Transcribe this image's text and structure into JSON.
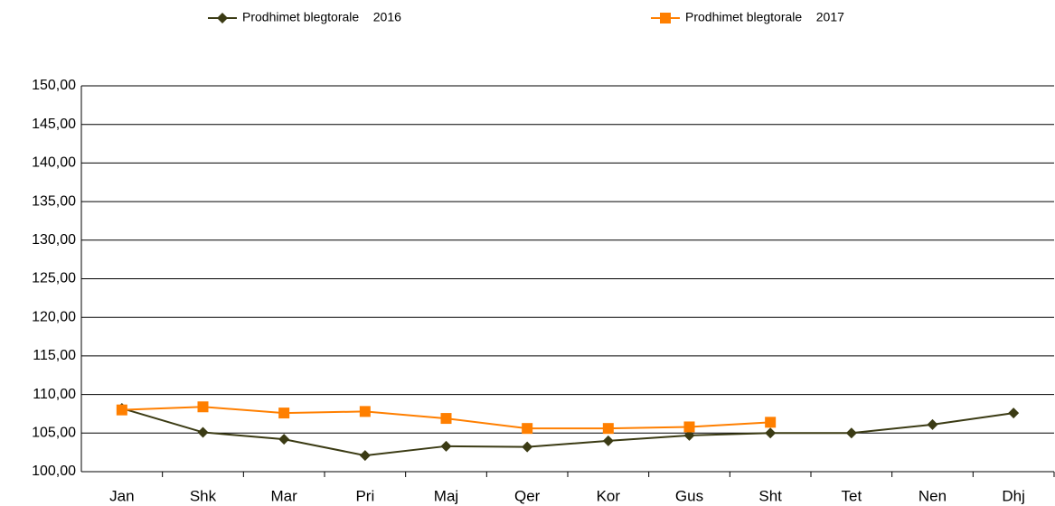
{
  "chart_data": {
    "type": "line",
    "categories": [
      "Jan",
      "Shk",
      "Mar",
      "Pri",
      "Maj",
      "Qer",
      "Kor",
      "Gus",
      "Sht",
      "Tet",
      "Nen",
      "Dhj"
    ],
    "series": [
      {
        "name": "Prodhimet blegtorale    2016",
        "color": "#3b3b14",
        "marker": "diamond",
        "values": [
          108.2,
          105.1,
          104.2,
          102.1,
          103.3,
          103.2,
          104.0,
          104.7,
          105.0,
          105.0,
          106.1,
          107.6
        ]
      },
      {
        "name": "Prodhimet blegtorale    2017",
        "color": "#ff7f00",
        "marker": "square",
        "values": [
          108.0,
          108.4,
          107.6,
          107.8,
          106.9,
          105.6,
          105.6,
          105.8,
          106.4,
          null,
          null,
          null
        ]
      }
    ],
    "ylim": [
      100,
      150
    ],
    "yticks": [
      {
        "value": 100,
        "label": "100,00"
      },
      {
        "value": 105,
        "label": "105,00"
      },
      {
        "value": 110,
        "label": "110,00"
      },
      {
        "value": 115,
        "label": "115,00"
      },
      {
        "value": 120,
        "label": "120,00"
      },
      {
        "value": 125,
        "label": "125,00"
      },
      {
        "value": 130,
        "label": "130,00"
      },
      {
        "value": 135,
        "label": "135,00"
      },
      {
        "value": 140,
        "label": "140,00"
      },
      {
        "value": 145,
        "label": "145,00"
      },
      {
        "value": 150,
        "label": "150,00"
      }
    ],
    "grid": true,
    "legend": "top"
  }
}
